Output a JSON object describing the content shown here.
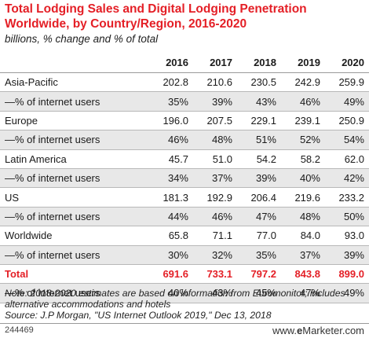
{
  "title": "Total Lodging Sales and Digital Lodging Penetration Worldwide, by Country/Region, 2016-2020",
  "subtitle": "billions, % change and % of total",
  "chart_data": {
    "type": "table",
    "columns": [
      "2016",
      "2017",
      "2018",
      "2019",
      "2020"
    ],
    "rows": [
      {
        "label": "Asia-Pacific",
        "values": [
          "202.8",
          "210.6",
          "230.5",
          "242.9",
          "259.9"
        ]
      },
      {
        "label": "—% of internet users",
        "values": [
          "35%",
          "39%",
          "43%",
          "46%",
          "49%"
        ]
      },
      {
        "label": "Europe",
        "values": [
          "196.0",
          "207.5",
          "229.1",
          "239.1",
          "250.9"
        ]
      },
      {
        "label": "—% of internet users",
        "values": [
          "46%",
          "48%",
          "51%",
          "52%",
          "54%"
        ]
      },
      {
        "label": "Latin America",
        "values": [
          "45.7",
          "51.0",
          "54.2",
          "58.2",
          "62.0"
        ]
      },
      {
        "label": "—% of internet users",
        "values": [
          "34%",
          "37%",
          "39%",
          "40%",
          "42%"
        ]
      },
      {
        "label": "US",
        "values": [
          "181.3",
          "192.9",
          "206.4",
          "219.6",
          "233.2"
        ]
      },
      {
        "label": "—% of internet users",
        "values": [
          "44%",
          "46%",
          "47%",
          "48%",
          "50%"
        ]
      },
      {
        "label": "Worldwide",
        "values": [
          "65.8",
          "71.1",
          "77.0",
          "84.0",
          "93.0"
        ]
      },
      {
        "label": "—% of internet users",
        "values": [
          "30%",
          "32%",
          "35%",
          "37%",
          "39%"
        ]
      },
      {
        "label": "Total",
        "values": [
          "691.6",
          "733.1",
          "797.2",
          "843.8",
          "899.0"
        ],
        "highlight": true
      },
      {
        "label": "—% of internet users",
        "values": [
          "40%",
          "43%",
          "45%",
          "47%",
          "49%"
        ]
      }
    ]
  },
  "note": "Note: 2018-2020 estimates are based on information from Euromonitor; includes alternative accommodations and hotels",
  "source": "Source: J.P Morgan, \"US Internet Outlook 2019,\" Dec 13, 2018",
  "footer_id": "244469",
  "brand": {
    "prefix": "www.",
    "e": "e",
    "name": "Marketer",
    "suffix": ".com"
  },
  "colors": {
    "accent": "#e41f26",
    "row_shade": "#e8e8e8"
  }
}
